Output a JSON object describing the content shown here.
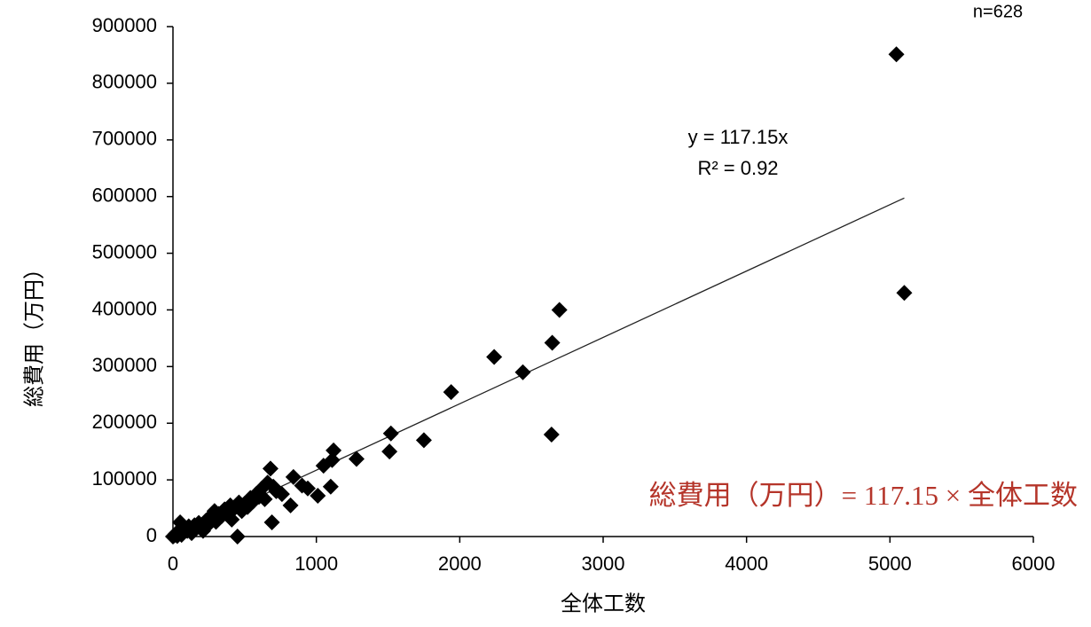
{
  "chart_data": {
    "type": "scatter",
    "xlabel": "全体工数",
    "ylabel": "総費用（万円）",
    "n_label": "n=628",
    "annotation": "総費用（万円）= 117.15 × 全体工数",
    "trendline": {
      "equation": "y = 117.15x",
      "r2_label": "R² = 0.92",
      "slope": 117.15,
      "x": [
        0,
        5100
      ]
    },
    "color": "#000000",
    "xlim": [
      0,
      6000
    ],
    "xticks": [
      0,
      1000,
      2000,
      3000,
      4000,
      5000,
      6000
    ],
    "ylim": [
      0,
      900000
    ],
    "yticks": [
      0,
      100000,
      200000,
      300000,
      400000,
      500000,
      600000,
      700000,
      800000,
      900000
    ],
    "x": [
      0,
      10,
      20,
      30,
      40,
      50,
      60,
      80,
      100,
      110,
      130,
      150,
      160,
      180,
      200,
      210,
      230,
      250,
      260,
      280,
      290,
      300,
      320,
      340,
      360,
      380,
      400,
      410,
      430,
      450,
      460,
      480,
      500,
      520,
      540,
      560,
      580,
      600,
      620,
      640,
      660,
      680,
      690,
      700,
      720,
      760,
      820,
      840,
      900,
      940,
      1010,
      1050,
      1100,
      1110,
      1120,
      1280,
      1510,
      1520,
      1750,
      1940,
      2240,
      2440,
      2640,
      2645,
      2695,
      5045,
      5100
    ],
    "y": [
      0,
      2000,
      5000,
      1000,
      8000,
      25000,
      3000,
      12000,
      10000,
      18000,
      6000,
      20000,
      14000,
      24000,
      18000,
      10000,
      28000,
      22000,
      35000,
      30000,
      45000,
      26000,
      40000,
      36000,
      48000,
      42000,
      55000,
      30000,
      50000,
      0,
      60000,
      45000,
      58000,
      52000,
      68000,
      62000,
      75000,
      70000,
      85000,
      66000,
      95000,
      120000,
      25000,
      88000,
      80000,
      75000,
      55000,
      105000,
      90000,
      85000,
      72000,
      125000,
      88000,
      135000,
      152000,
      137000,
      150000,
      182000,
      170000,
      255000,
      317000,
      290000,
      180000,
      342000,
      400000,
      851000,
      430000
    ]
  }
}
